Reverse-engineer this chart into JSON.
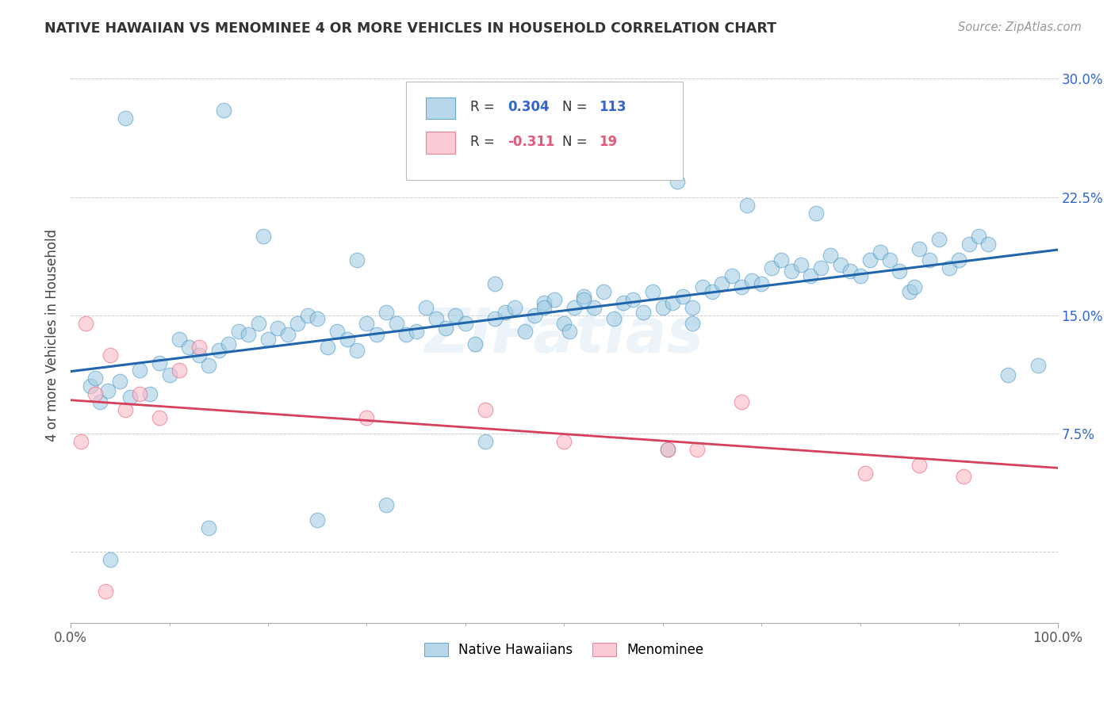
{
  "title": "NATIVE HAWAIIAN VS MENOMINEE 4 OR MORE VEHICLES IN HOUSEHOLD CORRELATION CHART",
  "source": "Source: ZipAtlas.com",
  "ylabel": "4 or more Vehicles in Household",
  "ytick_vals": [
    0.0,
    7.5,
    15.0,
    22.5,
    30.0
  ],
  "ytick_labels": [
    "",
    "7.5%",
    "15.0%",
    "22.5%",
    "30.0%"
  ],
  "xlim": [
    0.0,
    100.0
  ],
  "ylim": [
    -4.5,
    32.0
  ],
  "r_blue": 0.304,
  "n_blue": 113,
  "r_pink": -0.311,
  "n_pink": 19,
  "blue_color": "#9ecae1",
  "pink_color": "#fcb9c7",
  "blue_edge_color": "#4393c3",
  "pink_edge_color": "#e8637c",
  "blue_line_color": "#2166ac",
  "pink_line_color": "#d6405c",
  "legend_blue": "Native Hawaiians",
  "legend_pink": "Menominee",
  "watermark": "ZIPatlas",
  "blue_points_x": [
    2.0,
    2.5,
    3.0,
    3.8,
    5.0,
    6.0,
    7.0,
    8.0,
    9.0,
    10.0,
    11.0,
    12.0,
    13.0,
    14.0,
    15.0,
    16.0,
    17.0,
    18.0,
    19.0,
    20.0,
    21.0,
    22.0,
    23.0,
    24.0,
    25.0,
    26.0,
    27.0,
    28.0,
    29.0,
    30.0,
    31.0,
    32.0,
    33.0,
    34.0,
    35.0,
    36.0,
    37.0,
    38.0,
    39.0,
    40.0,
    41.0,
    42.0,
    43.0,
    44.0,
    45.0,
    46.0,
    47.0,
    48.0,
    49.0,
    50.0,
    51.0,
    52.0,
    53.0,
    54.0,
    55.0,
    56.0,
    57.0,
    58.0,
    59.0,
    60.0,
    61.0,
    62.0,
    63.0,
    64.0,
    65.0,
    66.0,
    67.0,
    68.0,
    69.0,
    70.0,
    71.0,
    72.0,
    73.0,
    74.0,
    75.0,
    76.0,
    77.0,
    78.0,
    79.0,
    80.0,
    81.0,
    82.0,
    83.0,
    84.0,
    85.0,
    86.0,
    87.0,
    88.0,
    89.0,
    90.0,
    91.0,
    92.0,
    93.0,
    5.5,
    15.5,
    19.5,
    29.0,
    43.0,
    50.5,
    61.5,
    68.5,
    75.5,
    85.5,
    95.0,
    98.0,
    48.0,
    60.5,
    52.0,
    63.0,
    4.0,
    14.0,
    25.0,
    32.0
  ],
  "blue_points_y": [
    10.5,
    11.0,
    9.5,
    10.2,
    10.8,
    9.8,
    11.5,
    10.0,
    12.0,
    11.2,
    13.5,
    13.0,
    12.5,
    11.8,
    12.8,
    13.2,
    14.0,
    13.8,
    14.5,
    13.5,
    14.2,
    13.8,
    14.5,
    15.0,
    14.8,
    13.0,
    14.0,
    13.5,
    12.8,
    14.5,
    13.8,
    15.2,
    14.5,
    13.8,
    14.0,
    15.5,
    14.8,
    14.2,
    15.0,
    14.5,
    13.2,
    7.0,
    14.8,
    15.2,
    15.5,
    14.0,
    15.0,
    15.8,
    16.0,
    14.5,
    15.5,
    16.2,
    15.5,
    16.5,
    14.8,
    15.8,
    16.0,
    15.2,
    16.5,
    15.5,
    15.8,
    16.2,
    15.5,
    16.8,
    16.5,
    17.0,
    17.5,
    16.8,
    17.2,
    17.0,
    18.0,
    18.5,
    17.8,
    18.2,
    17.5,
    18.0,
    18.8,
    18.2,
    17.8,
    17.5,
    18.5,
    19.0,
    18.5,
    17.8,
    16.5,
    19.2,
    18.5,
    19.8,
    18.0,
    18.5,
    19.5,
    20.0,
    19.5,
    27.5,
    28.0,
    20.0,
    18.5,
    17.0,
    14.0,
    23.5,
    22.0,
    21.5,
    16.8,
    11.2,
    11.8,
    15.5,
    6.5,
    16.0,
    14.5,
    -0.5,
    1.5,
    2.0,
    3.0
  ],
  "pink_points_x": [
    1.5,
    2.5,
    4.0,
    5.5,
    7.0,
    9.0,
    11.0,
    13.0,
    30.0,
    42.0,
    50.0,
    60.5,
    63.5,
    68.0,
    80.5,
    86.0,
    90.5,
    1.0,
    3.5
  ],
  "pink_points_y": [
    14.5,
    10.0,
    12.5,
    9.0,
    10.0,
    8.5,
    11.5,
    13.0,
    8.5,
    9.0,
    7.0,
    6.5,
    6.5,
    9.5,
    5.0,
    5.5,
    4.8,
    7.0,
    -2.5
  ]
}
